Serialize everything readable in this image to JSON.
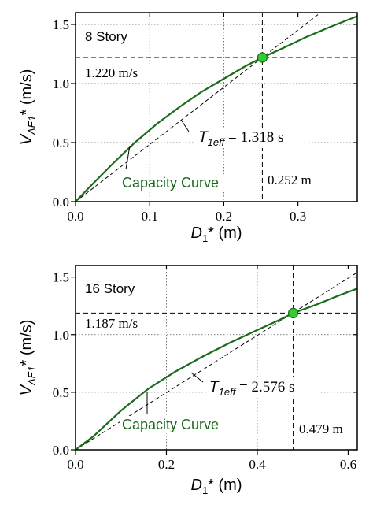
{
  "colors": {
    "curve": "#1a6b1a",
    "marker_fill": "#33cc33",
    "marker_stroke": "#1a6b1a",
    "text": "#000000"
  },
  "chart_data": [
    {
      "type": "line",
      "panel_label": "8 Story",
      "xlabel_main": "D",
      "xlabel_sub": "1",
      "xlabel_tail": "* (m)",
      "ylabel_main": "V",
      "ylabel_sub": "ΔE1",
      "ylabel_tail": "* (m/s)",
      "xlim": [
        0.0,
        0.38
      ],
      "ylim": [
        0.0,
        1.6
      ],
      "xticks": [
        0.0,
        0.1,
        0.2,
        0.3
      ],
      "xtick_labels": [
        "0.0",
        "0.1",
        "0.2",
        "0.3"
      ],
      "yticks": [
        0.0,
        0.5,
        1.0,
        1.5
      ],
      "ytick_labels": [
        "0.0",
        "0.5",
        "1.0",
        "1.5"
      ],
      "series": [
        {
          "name": "Capacity Curve",
          "x": [
            0.0,
            0.02,
            0.05,
            0.08,
            0.11,
            0.14,
            0.17,
            0.2,
            0.23,
            0.252,
            0.28,
            0.31,
            0.34,
            0.38
          ],
          "y": [
            0.0,
            0.13,
            0.32,
            0.5,
            0.66,
            0.8,
            0.93,
            1.04,
            1.15,
            1.22,
            1.3,
            1.39,
            1.47,
            1.57
          ]
        }
      ],
      "secant": {
        "x": [
          0.0,
          0.38
        ],
        "y": [
          0.0,
          1.84
        ]
      },
      "performance_point": {
        "x": 0.252,
        "y": 1.22
      },
      "velocity_label": "1.220 m/s",
      "displacement_label": "0.252 m",
      "teff_main": "T",
      "teff_sub": "1eff",
      "teff_value": "= 1.318 s",
      "curve_label": "Capacity Curve",
      "grid_x": [
        0.1,
        0.2
      ],
      "grid_y": [
        0.5,
        1.0,
        1.5
      ]
    },
    {
      "type": "line",
      "panel_label": "16 Story",
      "xlabel_main": "D",
      "xlabel_sub": "1",
      "xlabel_tail": "* (m)",
      "ylabel_main": "V",
      "ylabel_sub": "ΔE1",
      "ylabel_tail": "* (m/s)",
      "xlim": [
        0.0,
        0.62
      ],
      "ylim": [
        0.0,
        1.6
      ],
      "xticks": [
        0.0,
        0.2,
        0.4,
        0.6
      ],
      "xtick_labels": [
        "0.0",
        "0.2",
        "0.4",
        "0.6"
      ],
      "yticks": [
        0.0,
        0.5,
        1.0,
        1.5
      ],
      "ytick_labels": [
        "0.0",
        "0.5",
        "1.0",
        "1.5"
      ],
      "series": [
        {
          "name": "Capacity Curve",
          "x": [
            0.0,
            0.04,
            0.1,
            0.16,
            0.22,
            0.28,
            0.34,
            0.4,
            0.45,
            0.479,
            0.53,
            0.58,
            0.62
          ],
          "y": [
            0.0,
            0.12,
            0.34,
            0.53,
            0.68,
            0.81,
            0.93,
            1.04,
            1.13,
            1.187,
            1.26,
            1.34,
            1.4
          ]
        }
      ],
      "secant": {
        "x": [
          0.0,
          0.62
        ],
        "y": [
          0.0,
          1.54
        ]
      },
      "performance_point": {
        "x": 0.479,
        "y": 1.187
      },
      "velocity_label": "1.187 m/s",
      "displacement_label": "0.479 m",
      "teff_main": "T",
      "teff_sub": "1eff",
      "teff_value": "= 2.576 s",
      "curve_label": "Capacity Curve",
      "grid_x": [
        0.2,
        0.4
      ],
      "grid_y": [
        0.5,
        1.0,
        1.5
      ]
    }
  ]
}
